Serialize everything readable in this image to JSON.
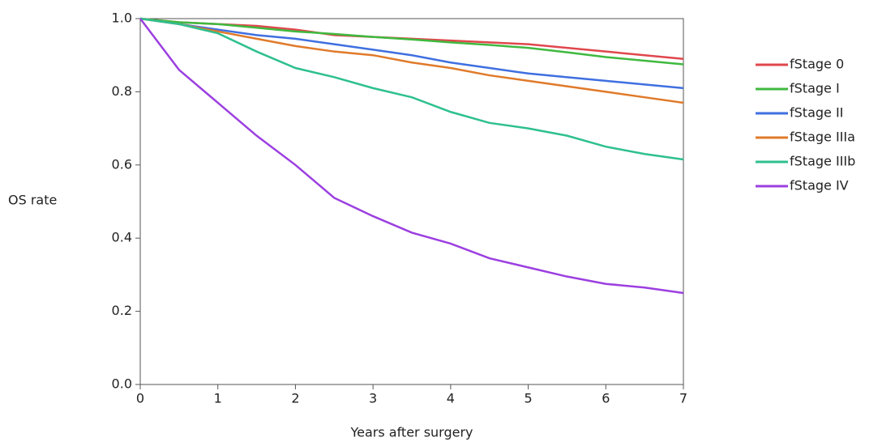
{
  "chart_data": {
    "type": "line",
    "x_label": "Years after surgery",
    "y_label": "OS rate",
    "x": [
      0,
      0.5,
      1,
      1.5,
      2,
      2.5,
      3,
      3.5,
      4,
      4.5,
      5,
      5.5,
      6,
      6.5,
      7
    ],
    "series": [
      {
        "name": "fStage 0",
        "color": "#e0474c",
        "values": [
          1.0,
          0.99,
          0.985,
          0.98,
          0.97,
          0.955,
          0.95,
          0.945,
          0.94,
          0.935,
          0.93,
          0.92,
          0.91,
          0.9,
          0.89
        ]
      },
      {
        "name": "fStage I",
        "color": "#3fb93f",
        "values": [
          1.0,
          0.99,
          0.985,
          0.975,
          0.965,
          0.958,
          0.95,
          0.943,
          0.935,
          0.928,
          0.92,
          0.908,
          0.895,
          0.885,
          0.875
        ]
      },
      {
        "name": "fStage II",
        "color": "#3f6fe0",
        "values": [
          1.0,
          0.985,
          0.97,
          0.955,
          0.945,
          0.93,
          0.915,
          0.9,
          0.88,
          0.865,
          0.85,
          0.84,
          0.83,
          0.82,
          0.81
        ]
      },
      {
        "name": "fStage IIIa",
        "color": "#e07a2a",
        "values": [
          1.0,
          0.985,
          0.965,
          0.945,
          0.925,
          0.91,
          0.9,
          0.88,
          0.865,
          0.845,
          0.83,
          0.815,
          0.8,
          0.785,
          0.77
        ]
      },
      {
        "name": "fStage IIIb",
        "color": "#2ec08e",
        "values": [
          1.0,
          0.985,
          0.96,
          0.91,
          0.865,
          0.84,
          0.81,
          0.785,
          0.745,
          0.715,
          0.7,
          0.68,
          0.65,
          0.63,
          0.615
        ]
      },
      {
        "name": "fStage IV",
        "color": "#9c3fe0",
        "values": [
          1.0,
          0.86,
          0.77,
          0.68,
          0.6,
          0.51,
          0.46,
          0.415,
          0.385,
          0.345,
          0.32,
          0.295,
          0.275,
          0.265,
          0.25
        ]
      }
    ],
    "xlim": [
      0,
      7
    ],
    "xticks": [
      0,
      1,
      2,
      3,
      4,
      5,
      6,
      7
    ],
    "ylim": [
      0,
      1
    ],
    "yticks": [
      {
        "value": 0,
        "label": "0.0"
      },
      0.2,
      0.4,
      0.6,
      0.8,
      {
        "value": 1,
        "label": "1.0"
      }
    ],
    "legend": "right"
  }
}
